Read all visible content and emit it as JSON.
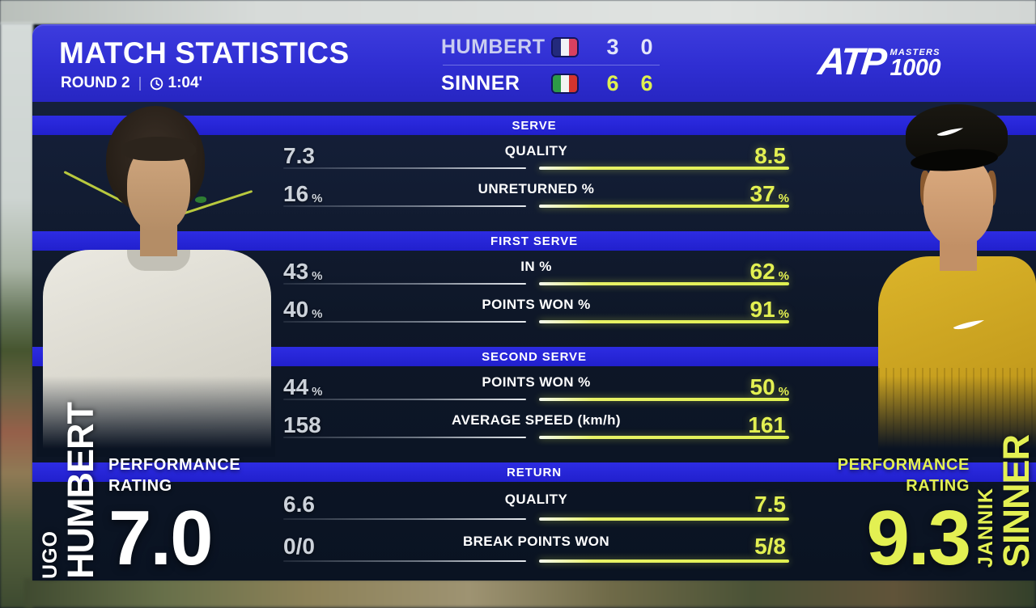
{
  "header": {
    "title_regular": "MATCH",
    "title_bold": "STATISTICS",
    "round": "ROUND 2",
    "duration": "1:04'"
  },
  "scoreboard": {
    "players": [
      {
        "name": "HUMBERT",
        "flag": "france",
        "sets": [
          "3",
          "0"
        ]
      },
      {
        "name": "SINNER",
        "flag": "italy",
        "sets": [
          "6",
          "6"
        ]
      }
    ]
  },
  "logo": {
    "brand": "ATP",
    "masters": "MASTERS",
    "thousand": "1000"
  },
  "sections": [
    {
      "title": "SERVE",
      "rows": [
        {
          "label": "QUALITY",
          "left": "7.3",
          "left_suffix": "",
          "right": "8.5",
          "right_suffix": ""
        },
        {
          "label": "UNRETURNED %",
          "left": "16",
          "left_suffix": "%",
          "right": "37",
          "right_suffix": "%"
        }
      ]
    },
    {
      "title": "FIRST SERVE",
      "rows": [
        {
          "label": "IN %",
          "left": "43",
          "left_suffix": "%",
          "right": "62",
          "right_suffix": "%"
        },
        {
          "label": "POINTS WON %",
          "left": "40",
          "left_suffix": "%",
          "right": "91",
          "right_suffix": "%"
        }
      ]
    },
    {
      "title": "SECOND SERVE",
      "rows": [
        {
          "label": "POINTS WON %",
          "left": "44",
          "left_suffix": "%",
          "right": "50",
          "right_suffix": "%"
        },
        {
          "label": "AVERAGE SPEED (km/h)",
          "left": "158",
          "left_suffix": "",
          "right": "161",
          "right_suffix": ""
        }
      ]
    },
    {
      "title": "RETURN",
      "rows": [
        {
          "label": "QUALITY",
          "left": "6.6",
          "left_suffix": "",
          "right": "7.5",
          "right_suffix": ""
        },
        {
          "label": "BREAK POINTS WON",
          "left": "0/0",
          "left_suffix": "",
          "right": "5/8",
          "right_suffix": ""
        }
      ]
    }
  ],
  "left_player": {
    "first": "UGO",
    "last": "HUMBERT",
    "rating_label_line1": "PERFORMANCE",
    "rating_label_line2": "RATING",
    "rating": "7.0"
  },
  "right_player": {
    "first": "JANNIK",
    "last": "SINNER",
    "rating_label_line1": "PERFORMANCE",
    "rating_label_line2": "RATING",
    "rating": "9.3"
  },
  "icons": {
    "clock": "clock-icon",
    "humbert_flag": "france-flag-icon",
    "sinner_flag": "italy-flag-icon",
    "swoosh": "nike-swoosh-icon"
  },
  "colors": {
    "header_blue": "#2f2ed2",
    "section_band_blue": "#2424d8",
    "panel_navy": "#0e1728",
    "highlight_yellow": "#dff050",
    "neutral_value_gray": "#ccd2da",
    "shirt_yellow": "#c69e1e"
  }
}
